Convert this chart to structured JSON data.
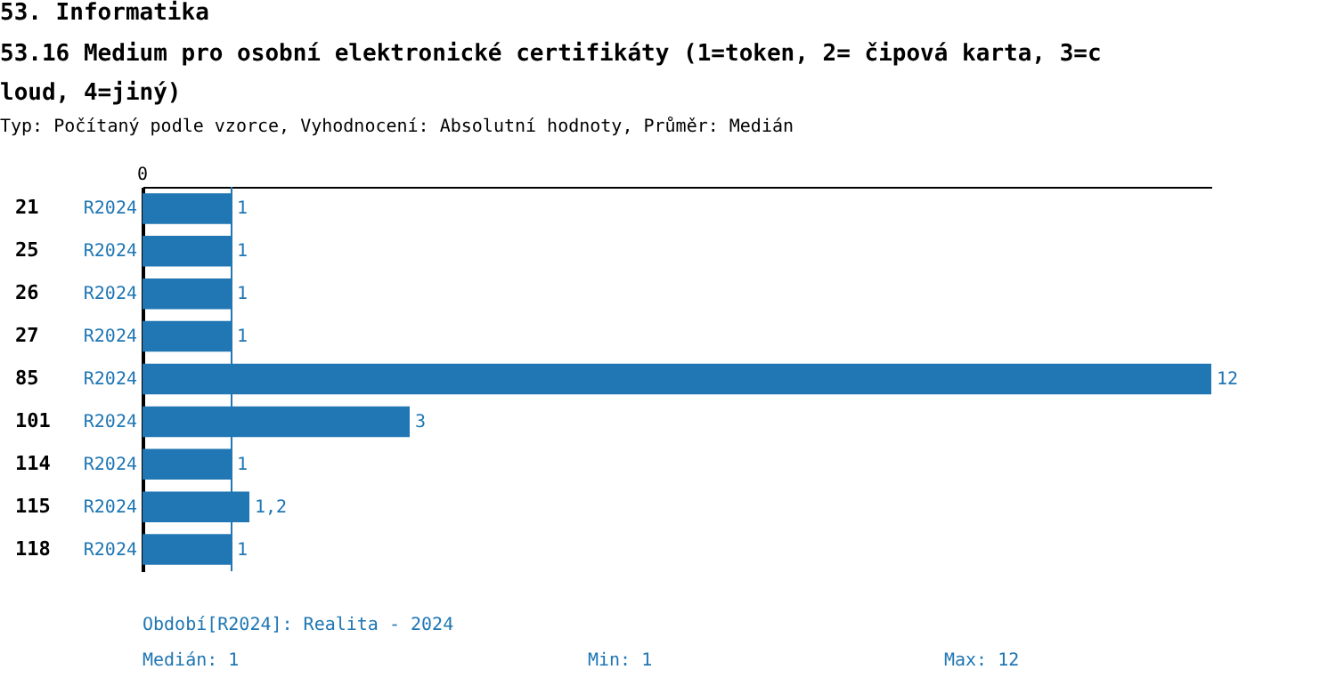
{
  "chart_data": {
    "type": "bar",
    "orientation": "horizontal",
    "title": "53. Informatika",
    "subtitle": "53.16 Medium pro osobní elektronické certifikáty (1=token, 2= čipová karta, 3=cloud, 4=jiný)",
    "categories": [
      "21",
      "25",
      "26",
      "27",
      "85",
      "101",
      "114",
      "115",
      "118"
    ],
    "series": [
      {
        "name": "R2024",
        "color": "#2077b4",
        "values": [
          1,
          1,
          1,
          1,
          12,
          3,
          1,
          1.2,
          1
        ],
        "value_labels": [
          "1",
          "1",
          "1",
          "1",
          "12",
          "3",
          "1",
          "1,2",
          "1"
        ]
      }
    ],
    "data_labels": true,
    "ref_lines": [
      {
        "axis": "x",
        "value": 1,
        "color": "#2077b4"
      }
    ],
    "annotations": [
      "0",
      "Typ: Počítaný podle vzorce, Vyhodnocení: Absolutní hodnoty, Průměr: Medián",
      "Období[R2024]: Realita - 2024",
      "Medián: 1",
      "Min: 1",
      "Max: 12"
    ]
  }
}
